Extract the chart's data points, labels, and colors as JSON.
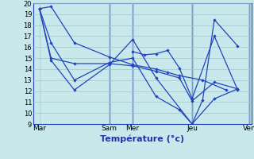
{
  "ylim": [
    9,
    20
  ],
  "yticks": [
    9,
    10,
    11,
    12,
    13,
    14,
    15,
    16,
    17,
    18,
    19,
    20
  ],
  "xlim": [
    -0.3,
    10.0
  ],
  "x_tick_positions": [
    0,
    3.3,
    4.4,
    7.2,
    9.9
  ],
  "x_tick_labels": [
    "Mar",
    "Sam",
    "Mer",
    "Jeu",
    "Ven"
  ],
  "xlabel": "Température (°c)",
  "background_color": "#c8e8ec",
  "grid_color": "#a0c8cc",
  "line_color": "#2244bb",
  "vlines_x": [
    3.3,
    4.4,
    7.2,
    9.9
  ],
  "series": [
    {
      "x": [
        0.0,
        0.55,
        1.65,
        3.3,
        4.4,
        5.5,
        6.05,
        6.6,
        7.7,
        8.8
      ],
      "y": [
        19.5,
        19.7,
        16.4,
        15.1,
        14.4,
        14.0,
        13.7,
        13.4,
        13.0,
        12.1
      ]
    },
    {
      "x": [
        0.0,
        0.55,
        1.65,
        3.3,
        4.4,
        5.5,
        7.2,
        7.7,
        8.25,
        9.35
      ],
      "y": [
        19.5,
        14.8,
        12.1,
        14.4,
        16.7,
        13.2,
        9.0,
        11.2,
        18.5,
        16.1
      ]
    },
    {
      "x": [
        0.0,
        0.55,
        1.65,
        3.3,
        4.4,
        5.5,
        6.6,
        7.2,
        8.25,
        9.35
      ],
      "y": [
        19.5,
        16.4,
        13.0,
        14.6,
        15.0,
        11.5,
        10.3,
        9.0,
        11.3,
        12.2
      ]
    },
    {
      "x": [
        4.4,
        4.95,
        5.5,
        6.05,
        6.6,
        7.2,
        8.25,
        9.35
      ],
      "y": [
        15.6,
        15.3,
        15.4,
        15.7,
        14.1,
        11.3,
        17.0,
        12.1
      ]
    },
    {
      "x": [
        0.0,
        0.55,
        1.65,
        3.3,
        4.4,
        5.5,
        6.6,
        7.2,
        8.25,
        9.35
      ],
      "y": [
        19.5,
        15.0,
        14.5,
        14.5,
        14.3,
        13.8,
        13.2,
        11.1,
        12.8,
        12.2
      ]
    }
  ],
  "figsize": [
    3.2,
    2.0
  ],
  "dpi": 100
}
